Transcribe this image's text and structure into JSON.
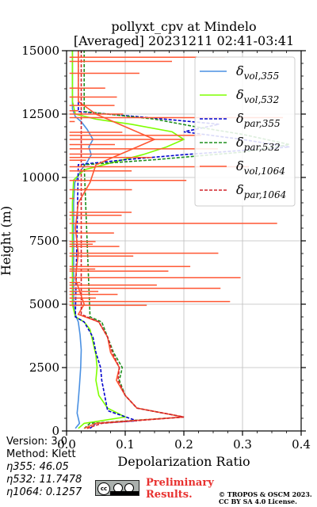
{
  "chart_data": {
    "type": "line",
    "title": "pollyxt_cpv at Mindelo",
    "subtitle": "[Averaged] 20231211 02:41-03:41",
    "xlabel": "Depolarization Ratio",
    "ylabel": "Height (m)",
    "xlim": [
      0.0,
      0.4
    ],
    "ylim": [
      0,
      15000
    ],
    "xticks": [
      "0.0",
      "0.1",
      "0.2",
      "0.3",
      "0.4"
    ],
    "yticks": [
      "0",
      "2500",
      "5000",
      "7500",
      "10000",
      "12500",
      "15000"
    ],
    "grid": true,
    "legend_position": "top-right",
    "series": [
      {
        "name": "δvol,355",
        "color": "#4a90e2",
        "style": "solid",
        "points": [
          [
            0.015,
            100
          ],
          [
            0.022,
            300
          ],
          [
            0.018,
            700
          ],
          [
            0.02,
            1200
          ],
          [
            0.022,
            1800
          ],
          [
            0.024,
            2500
          ],
          [
            0.025,
            3200
          ],
          [
            0.023,
            3800
          ],
          [
            0.02,
            4300
          ],
          [
            0.015,
            4600
          ],
          [
            0.012,
            5000
          ],
          [
            0.012,
            6000
          ],
          [
            0.012,
            7000
          ],
          [
            0.012,
            8000
          ],
          [
            0.012,
            9000
          ],
          [
            0.014,
            9800
          ],
          [
            0.025,
            10300
          ],
          [
            0.035,
            10600
          ],
          [
            0.042,
            10900
          ],
          [
            0.038,
            11200
          ],
          [
            0.045,
            11500
          ],
          [
            0.035,
            11900
          ],
          [
            0.025,
            12200
          ],
          [
            0.015,
            12400
          ],
          [
            0.01,
            12700
          ],
          [
            0.01,
            14000
          ],
          [
            0.01,
            15000
          ]
        ]
      },
      {
        "name": "δvol,532",
        "color": "#7fff00",
        "style": "solid",
        "points": [
          [
            0.02,
            100
          ],
          [
            0.03,
            300
          ],
          [
            0.1,
            550
          ],
          [
            0.07,
            900
          ],
          [
            0.055,
            1400
          ],
          [
            0.05,
            2000
          ],
          [
            0.052,
            2500
          ],
          [
            0.05,
            3000
          ],
          [
            0.045,
            3500
          ],
          [
            0.04,
            4000
          ],
          [
            0.03,
            4300
          ],
          [
            0.015,
            4500
          ],
          [
            0.01,
            5000
          ],
          [
            0.01,
            6000
          ],
          [
            0.01,
            7000
          ],
          [
            0.01,
            8000
          ],
          [
            0.01,
            9000
          ],
          [
            0.012,
            9900
          ],
          [
            0.03,
            10300
          ],
          [
            0.08,
            10600
          ],
          [
            0.13,
            10900
          ],
          [
            0.17,
            11200
          ],
          [
            0.2,
            11500
          ],
          [
            0.18,
            11800
          ],
          [
            0.11,
            12100
          ],
          [
            0.05,
            12300
          ],
          [
            0.015,
            12500
          ],
          [
            0.01,
            13000
          ],
          [
            0.01,
            14000
          ],
          [
            0.01,
            15000
          ]
        ]
      },
      {
        "name": "δpar,355",
        "color": "#0000cd",
        "style": "dashed",
        "points": [
          [
            0.04,
            100
          ],
          [
            0.05,
            300
          ],
          [
            0.12,
            400
          ],
          [
            0.07,
            800
          ],
          [
            0.065,
            1400
          ],
          [
            0.06,
            2000
          ],
          [
            0.058,
            2500
          ],
          [
            0.05,
            3100
          ],
          [
            0.045,
            3700
          ],
          [
            0.03,
            4300
          ],
          [
            0.015,
            4500
          ],
          [
            0.02,
            10500
          ],
          [
            0.1,
            10700
          ],
          [
            0.2,
            10900
          ],
          [
            0.38,
            11200
          ],
          [
            0.3,
            11500
          ],
          [
            0.2,
            11800
          ],
          [
            0.26,
            12100
          ],
          [
            0.12,
            12400
          ],
          [
            0.02,
            12600
          ],
          [
            0.02,
            15000
          ]
        ]
      },
      {
        "name": "δpar,532",
        "color": "#1e8f1e",
        "style": "dashed",
        "points": [
          [
            0.03,
            100
          ],
          [
            0.04,
            300
          ],
          [
            0.2,
            550
          ],
          [
            0.12,
            900
          ],
          [
            0.1,
            1400
          ],
          [
            0.09,
            2000
          ],
          [
            0.095,
            2500
          ],
          [
            0.08,
            3100
          ],
          [
            0.07,
            3700
          ],
          [
            0.06,
            4300
          ],
          [
            0.04,
            4500
          ],
          [
            0.03,
            10500
          ],
          [
            0.15,
            10700
          ],
          [
            0.3,
            11000
          ],
          [
            0.38,
            11300
          ],
          [
            0.3,
            11700
          ],
          [
            0.22,
            12000
          ],
          [
            0.15,
            12300
          ],
          [
            0.03,
            12600
          ],
          [
            0.03,
            15000
          ]
        ]
      },
      {
        "name": "δvol,1064",
        "color": "#ff5733",
        "style": "solid",
        "points": [
          [
            0.03,
            100
          ],
          [
            0.05,
            300
          ],
          [
            0.2,
            550
          ],
          [
            0.12,
            900
          ],
          [
            0.1,
            1400
          ],
          [
            0.085,
            2000
          ],
          [
            0.09,
            2500
          ],
          [
            0.075,
            3100
          ],
          [
            0.07,
            3700
          ],
          [
            0.055,
            4300
          ],
          [
            0.02,
            4600
          ],
          [
            0.03,
            5000
          ],
          [
            0.015,
            6000
          ],
          [
            0.02,
            7000
          ],
          [
            0.015,
            8000
          ],
          [
            0.02,
            9000
          ],
          [
            0.04,
            9800
          ],
          [
            0.05,
            10500
          ],
          [
            0.1,
            11000
          ],
          [
            0.15,
            11500
          ],
          [
            0.1,
            12000
          ],
          [
            0.05,
            12500
          ],
          [
            0.02,
            13000
          ],
          [
            0.02,
            14000
          ],
          [
            0.02,
            15000
          ]
        ]
      },
      {
        "name": "δpar,1064",
        "color": "#d2232a",
        "style": "dashed",
        "points": [
          [
            0.035,
            100
          ],
          [
            0.06,
            300
          ],
          [
            0.2,
            550
          ],
          [
            0.12,
            900
          ],
          [
            0.1,
            1400
          ],
          [
            0.088,
            2000
          ],
          [
            0.09,
            2500
          ],
          [
            0.078,
            3100
          ],
          [
            0.07,
            3700
          ],
          [
            0.055,
            4300
          ],
          [
            0.025,
            4600
          ],
          [
            0.025,
            15000
          ]
        ]
      }
    ],
    "legend": [
      {
        "base": "δ",
        "sub": "vol,355",
        "color": "#4a90e2",
        "style": "solid"
      },
      {
        "base": "δ",
        "sub": "vol,532",
        "color": "#7fff00",
        "style": "solid"
      },
      {
        "base": "δ",
        "sub": "par,355",
        "color": "#0000cd",
        "style": "dashed"
      },
      {
        "base": "δ",
        "sub": "par,532",
        "color": "#1e8f1e",
        "style": "dashed"
      },
      {
        "base": "δ",
        "sub": "vol,1064",
        "color": "#ff5733",
        "style": "solid"
      },
      {
        "base": "δ",
        "sub": "par,1064",
        "color": "#d2232a",
        "style": "dashed"
      }
    ]
  },
  "info": {
    "version": "Version: 3.0",
    "method": "Method: Klett",
    "eta355": "η355:  46.05",
    "eta532": "η532: 11.7478",
    "eta1064": "η1064: 0.1257"
  },
  "footer": {
    "preliminary_line1": "Preliminary",
    "preliminary_line2": "Results.",
    "copyright_line1": "© TROPOS & OSCM 2023.",
    "copyright_line2": "CC BY SA 4.0 License.",
    "cc_label": "cc"
  }
}
